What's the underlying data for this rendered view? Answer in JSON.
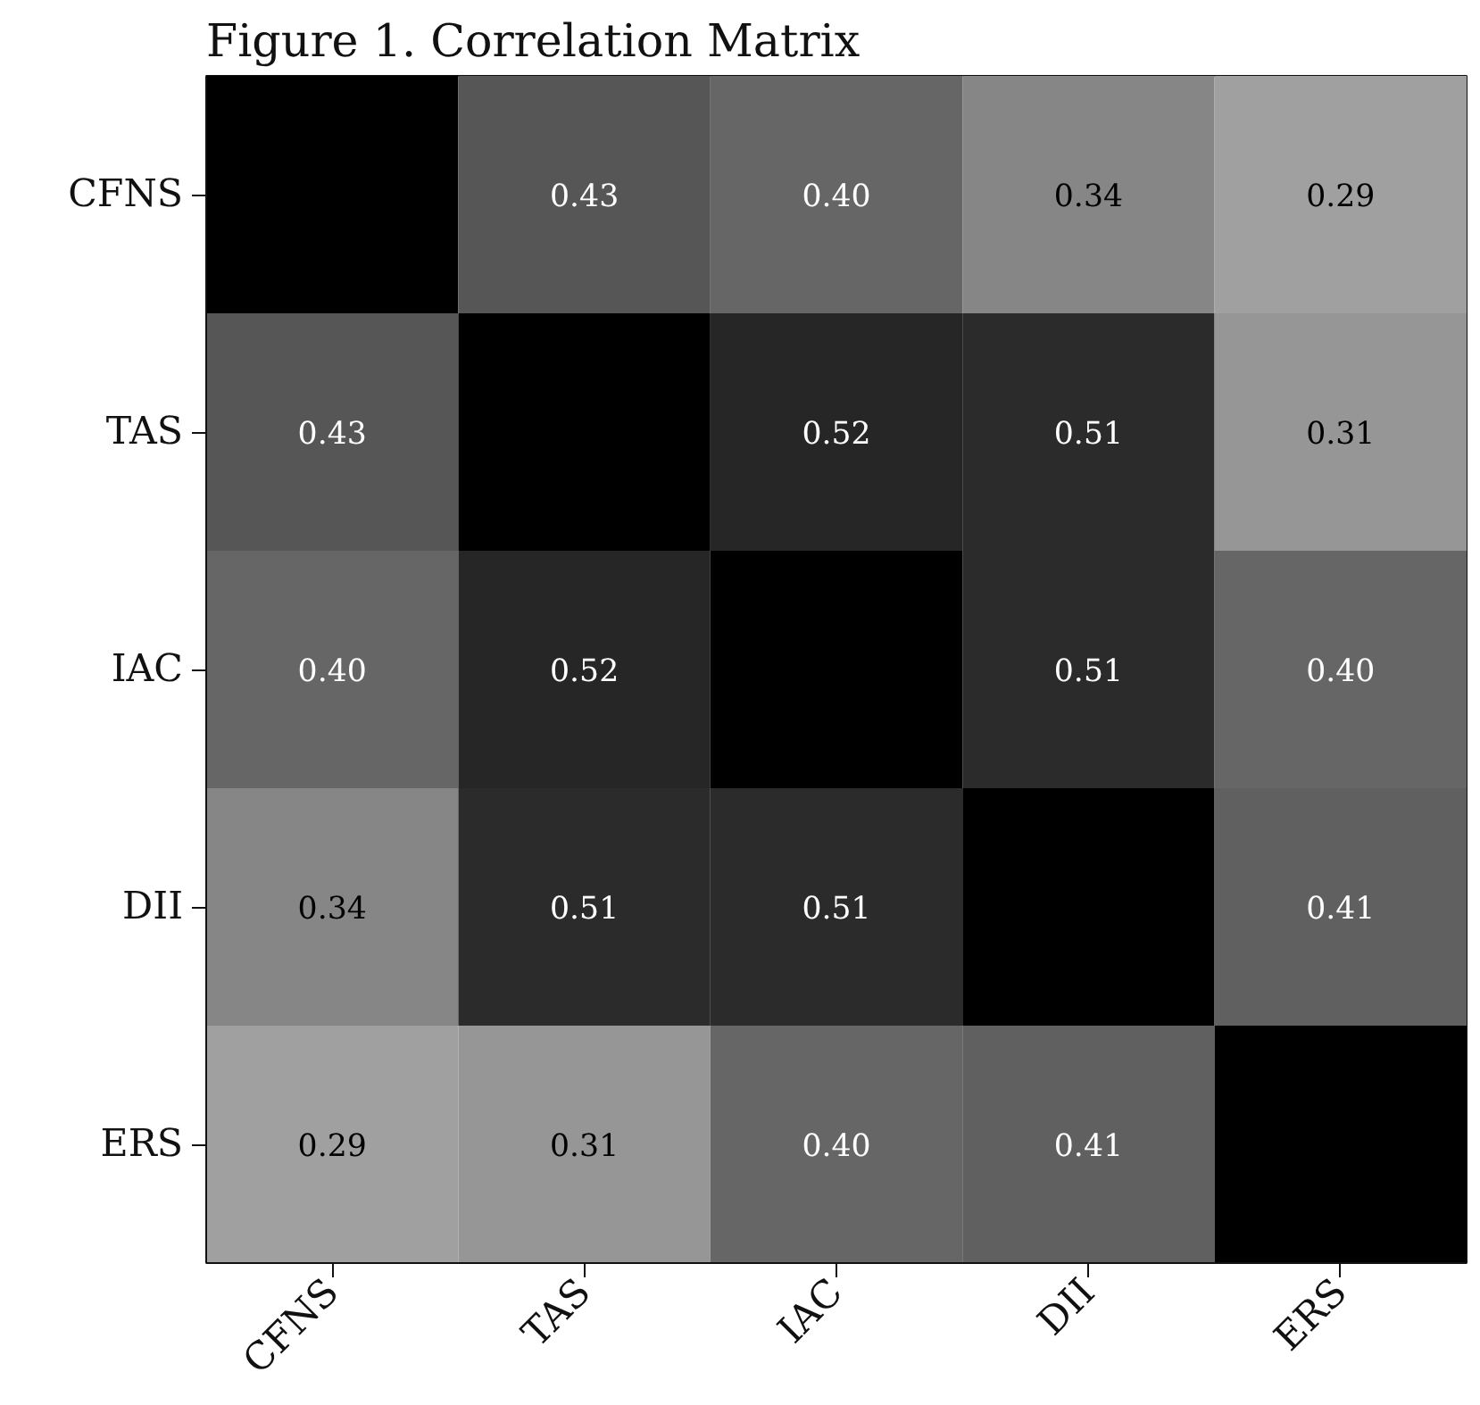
{
  "chart_data": {
    "type": "heatmap",
    "title": "Figure 1. Correlation Matrix",
    "categories": [
      "CFNS",
      "TAS",
      "IAC",
      "DII",
      "ERS"
    ],
    "y_categories": [
      "CFNS",
      "TAS",
      "IAC",
      "DII",
      "ERS"
    ],
    "cells": [
      [
        null,
        0.43,
        0.4,
        0.34,
        0.29
      ],
      [
        0.43,
        null,
        0.52,
        0.51,
        0.31
      ],
      [
        0.4,
        0.52,
        null,
        0.51,
        0.4
      ],
      [
        0.34,
        0.51,
        0.51,
        null,
        0.41
      ],
      [
        0.29,
        0.31,
        0.4,
        0.41,
        null
      ]
    ],
    "cell_labels": [
      [
        null,
        "0.43",
        "0.40",
        "0.34",
        "0.29"
      ],
      [
        "0.43",
        null,
        "0.52",
        "0.51",
        "0.31"
      ],
      [
        "0.40",
        "0.52",
        null,
        "0.51",
        "0.40"
      ],
      [
        "0.34",
        "0.51",
        "0.51",
        null,
        "0.41"
      ],
      [
        "0.29",
        "0.31",
        "0.40",
        "0.41",
        null
      ]
    ]
  }
}
